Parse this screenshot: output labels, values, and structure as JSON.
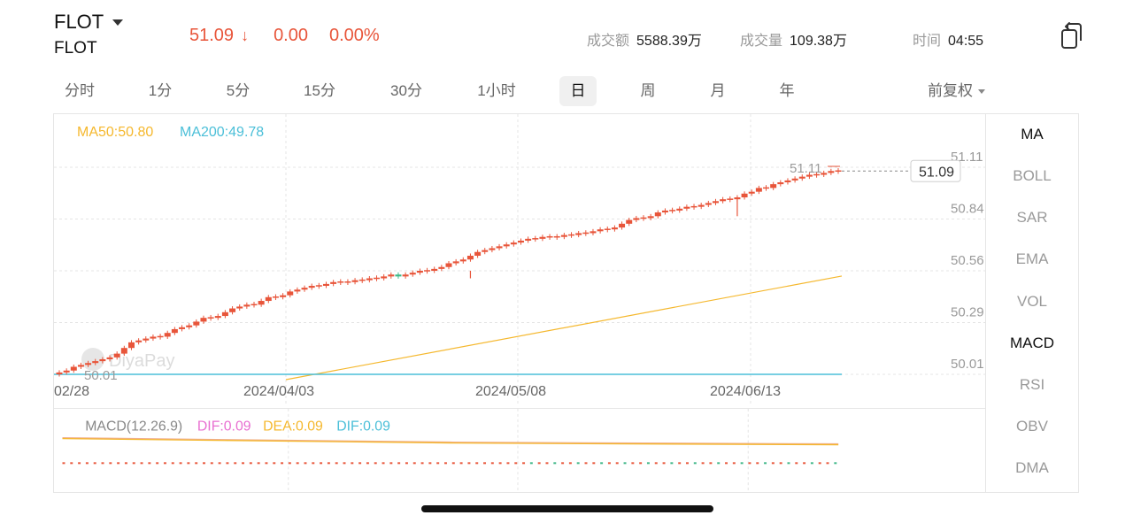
{
  "header": {
    "symbol": "FLOT",
    "symbol_sub": "FLOT",
    "price": "51.09",
    "change": "0.00",
    "change_pct": "0.00%",
    "amount_label": "成交额",
    "amount_value": "5588.39万",
    "volume_label": "成交量",
    "volume_value": "109.38万",
    "time_label": "时间",
    "time_value": "04:55"
  },
  "periods": [
    "分时",
    "1分",
    "5分",
    "15分",
    "30分",
    "1小时",
    "日",
    "周",
    "月",
    "年"
  ],
  "active_period": "日",
  "adjust_label": "前复权",
  "indicators": [
    "MA",
    "BOLL",
    "SAR",
    "EMA",
    "VOL",
    "MACD",
    "RSI",
    "OBV",
    "DMA"
  ],
  "active_indicators": [
    "MA",
    "MACD"
  ],
  "colors": {
    "up": "#e8553a",
    "down": "#3db787",
    "ma50": "#f5b82e",
    "ma200": "#4bbfd8",
    "dif": "#e86fd1",
    "dea": "#f5b82e",
    "grid": "#e4e4e4",
    "axis_text": "#9a9a9a"
  },
  "chart_data": {
    "type": "candlestick",
    "legend": {
      "ma50": "MA50:50.80",
      "ma200": "MA200:49.78"
    },
    "y_ticks": [
      "51.11",
      "50.84",
      "50.56",
      "50.29",
      "50.01"
    ],
    "y_range": [
      50.01,
      51.11
    ],
    "x_ticks": [
      "02/28",
      "2024/04/03",
      "2024/05/08",
      "2024/06/13"
    ],
    "last_price_tag": "51.09",
    "high_label": "51.11",
    "low_label": "50.01",
    "close": [
      50.02,
      50.03,
      50.05,
      50.06,
      50.07,
      50.08,
      50.09,
      50.1,
      50.12,
      50.15,
      50.18,
      50.19,
      50.2,
      50.21,
      50.21,
      50.23,
      50.25,
      50.26,
      50.27,
      50.29,
      50.31,
      50.31,
      50.32,
      50.34,
      50.36,
      50.37,
      50.38,
      50.38,
      50.4,
      50.42,
      50.42,
      50.43,
      50.45,
      50.46,
      50.47,
      50.48,
      50.48,
      50.49,
      50.5,
      50.5,
      50.5,
      50.51,
      50.51,
      50.52,
      50.52,
      50.53,
      50.54,
      50.53,
      50.54,
      50.55,
      50.56,
      50.56,
      50.57,
      50.58,
      50.6,
      50.61,
      50.62,
      50.64,
      50.66,
      50.67,
      50.68,
      50.69,
      50.7,
      50.71,
      50.72,
      50.73,
      50.73,
      50.74,
      50.74,
      50.74,
      50.75,
      50.75,
      50.76,
      50.76,
      50.77,
      50.78,
      50.78,
      50.79,
      50.81,
      50.83,
      50.84,
      50.84,
      50.85,
      50.87,
      50.88,
      50.88,
      50.89,
      50.9,
      50.9,
      50.91,
      50.92,
      50.93,
      50.94,
      50.94,
      50.95,
      50.97,
      50.98,
      51.0,
      51.0,
      51.02,
      51.03,
      51.04,
      51.05,
      51.06,
      51.07,
      51.07,
      51.08,
      51.09,
      51.09
    ],
    "ma50_start": 50.0,
    "ma50_end": 50.8,
    "ma200": 49.78,
    "macd_legend": {
      "label": "MACD(12.26.9)",
      "dif": "DIF:0.09",
      "dea": "DEA:0.09",
      "dif2": "DIF:0.09"
    },
    "watermark": "DiyaPay"
  }
}
